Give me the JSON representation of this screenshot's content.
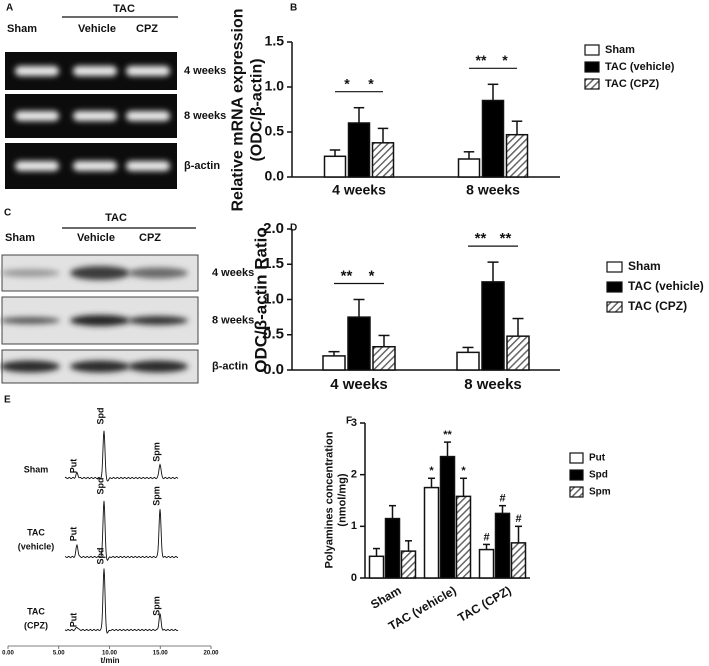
{
  "panels": {
    "A": {
      "label": "A",
      "group": "TAC",
      "columns": [
        "Sham",
        "Vehicle",
        "CPZ"
      ],
      "rows": [
        "4 weeks",
        "8 weeks",
        "β-actin"
      ]
    },
    "C": {
      "label": "C",
      "group": "TAC",
      "columns": [
        "Sham",
        "Vehicle",
        "CPZ"
      ],
      "rows": [
        "4 weeks",
        "8 weeks",
        "β-actin"
      ]
    },
    "E": {
      "label": "E",
      "xlabel": "t/min",
      "xlim": [
        0,
        20
      ],
      "xticks": [
        {
          "value": 0,
          "label": "0.00"
        },
        {
          "value": 5,
          "label": "5.00"
        },
        {
          "value": 10,
          "label": "10.00"
        },
        {
          "value": 15,
          "label": "15.00"
        },
        {
          "value": 20,
          "label": "20.00"
        }
      ],
      "traces": [
        {
          "name": [
            "Sham"
          ],
          "peaks": [
            "Put",
            "Spd",
            "Spm"
          ]
        },
        {
          "name": [
            "TAC",
            "(vehicle)"
          ],
          "peaks": [
            "Put",
            "Spd",
            "Spm"
          ]
        },
        {
          "name": [
            "TAC",
            "(CPZ)"
          ],
          "peaks": [
            "Put",
            "Spd",
            "Spm"
          ]
        }
      ]
    }
  },
  "chart_data": [
    {
      "type": "bar",
      "panel_label": "B",
      "ylabel": [
        "Relative mRNA expression",
        "(ODC/β-actin)"
      ],
      "categories": [
        "4 weeks",
        "8 weeks"
      ],
      "series": [
        {
          "name": "Sham",
          "color": "#ffffff",
          "values": [
            0.23,
            0.2
          ],
          "errors": [
            0.07,
            0.08
          ]
        },
        {
          "name": "TAC (vehicle)",
          "color": "#000000",
          "values": [
            0.6,
            0.85
          ],
          "errors": [
            0.17,
            0.18
          ]
        },
        {
          "name": "TAC (CPZ)",
          "color": "#8c8c8c",
          "hatch": true,
          "values": [
            0.38,
            0.47
          ],
          "errors": [
            0.16,
            0.15
          ]
        }
      ],
      "ylim": [
        0,
        1.5
      ],
      "yticks": [
        {
          "value": 0,
          "label": "0.0"
        },
        {
          "value": 0.5,
          "label": "0.5"
        },
        {
          "value": 1,
          "label": "1.0"
        },
        {
          "value": 1.5,
          "label": "1.5"
        }
      ],
      "significance": [
        [
          "*",
          "*"
        ],
        [
          "**",
          "*"
        ]
      ],
      "legend": "right"
    },
    {
      "type": "bar",
      "panel_label": "D",
      "ylabel": [
        "ODC/β-actin Ratio"
      ],
      "categories": [
        "4 weeks",
        "8 weeks"
      ],
      "series": [
        {
          "name": "Sham",
          "color": "#ffffff",
          "values": [
            0.2,
            0.25
          ],
          "errors": [
            0.06,
            0.07
          ]
        },
        {
          "name": "TAC (vehicle)",
          "color": "#000000",
          "values": [
            0.75,
            1.25
          ],
          "errors": [
            0.25,
            0.28
          ]
        },
        {
          "name": "TAC (CPZ)",
          "color": "#8c8c8c",
          "hatch": true,
          "values": [
            0.33,
            0.48
          ],
          "errors": [
            0.16,
            0.25
          ]
        }
      ],
      "ylim": [
        0,
        2
      ],
      "yticks": [
        {
          "value": 0,
          "label": "0.0"
        },
        {
          "value": 0.5,
          "label": "0.5"
        },
        {
          "value": 1,
          "label": "1.0"
        },
        {
          "value": 1.5,
          "label": "1.5"
        },
        {
          "value": 2,
          "label": "2.0"
        }
      ],
      "significance": [
        [
          "**",
          "*"
        ],
        [
          "**",
          "**"
        ]
      ],
      "legend": "right"
    },
    {
      "type": "bar",
      "panel_label": "F",
      "ylabel": [
        "Polyamines concentration",
        "(nmol/mg)"
      ],
      "categories": [
        "Sham",
        "TAC (vehicle)",
        "TAC (CPZ)"
      ],
      "series": [
        {
          "name": "Put",
          "color": "#ffffff",
          "values": [
            0.42,
            1.75,
            0.55
          ],
          "errors": [
            0.15,
            0.18,
            0.1
          ],
          "annotations": [
            null,
            "*",
            "#"
          ]
        },
        {
          "name": "Spd",
          "color": "#000000",
          "values": [
            1.15,
            2.35,
            1.25
          ],
          "errors": [
            0.25,
            0.28,
            0.15
          ],
          "annotations": [
            null,
            "**",
            "#"
          ]
        },
        {
          "name": "Spm",
          "color": "#8c8c8c",
          "hatch": true,
          "values": [
            0.52,
            1.58,
            0.68
          ],
          "errors": [
            0.2,
            0.35,
            0.32
          ],
          "annotations": [
            null,
            "*",
            "#"
          ]
        }
      ],
      "ylim": [
        0,
        3
      ],
      "yticks": [
        0,
        1,
        2,
        3
      ],
      "legend": "right"
    }
  ]
}
